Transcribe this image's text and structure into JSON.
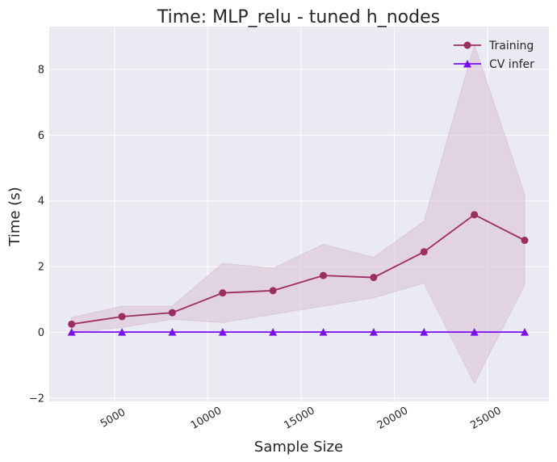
{
  "chart_data": {
    "type": "line",
    "title": "Time: MLP_relu - tuned h_nodes",
    "xlabel": "Sample Size",
    "ylabel": "Time (s)",
    "xlim": [
      1500,
      28300
    ],
    "ylim": [
      -2.1,
      9.3
    ],
    "xticks": [
      5000,
      10000,
      15000,
      20000,
      25000
    ],
    "xtick_labels": [
      "5000",
      "10000",
      "15000",
      "20000",
      "25000"
    ],
    "yticks": [
      -2,
      0,
      2,
      4,
      6,
      8
    ],
    "ytick_labels": [
      "−2",
      "0",
      "2",
      "4",
      "6",
      "8"
    ],
    "xtick_rotation": 30,
    "grid": true,
    "legend_position": "top-right",
    "x": [
      2700,
      5400,
      8100,
      10800,
      13500,
      16200,
      18900,
      21600,
      24300,
      27000
    ],
    "series": [
      {
        "name": "Training",
        "color": "#9b2d62",
        "marker": "circle",
        "values": [
          0.25,
          0.48,
          0.6,
          1.2,
          1.27,
          1.73,
          1.67,
          2.45,
          3.58,
          2.8
        ],
        "band_low": [
          0.0,
          0.15,
          0.4,
          0.3,
          0.55,
          0.8,
          1.05,
          1.5,
          -1.55,
          1.45
        ],
        "band_high": [
          0.45,
          0.8,
          0.8,
          2.1,
          1.95,
          2.68,
          2.28,
          3.38,
          8.75,
          4.2
        ],
        "band_color": "#d8bfd2"
      },
      {
        "name": "CV infer",
        "color": "#7a0ff0",
        "marker": "triangle",
        "values": [
          0.01,
          0.01,
          0.01,
          0.01,
          0.01,
          0.01,
          0.01,
          0.01,
          0.01,
          0.01
        ],
        "band_low": [
          0.0,
          0.0,
          0.0,
          0.0,
          0.0,
          0.0,
          0.0,
          0.0,
          0.0,
          0.0
        ],
        "band_high": [
          0.02,
          0.02,
          0.02,
          0.02,
          0.02,
          0.02,
          0.02,
          0.02,
          0.02,
          0.02
        ],
        "band_color": "#c9a8f2"
      }
    ],
    "colors": {
      "plot_background": "#eaeaf2",
      "grid": "#ffffff"
    }
  }
}
